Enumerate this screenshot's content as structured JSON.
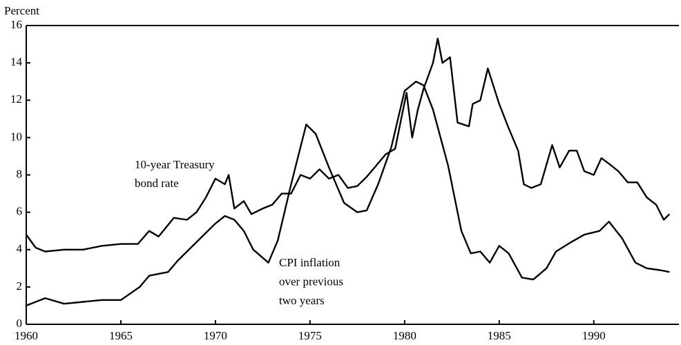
{
  "chart_data": {
    "type": "line",
    "y_label": "Percent",
    "xlim": [
      1960,
      1994.5
    ],
    "xticks": [
      1960,
      1965,
      1970,
      1975,
      1980,
      1985,
      1990
    ],
    "ylim": [
      0,
      16
    ],
    "yticks": [
      0,
      2,
      4,
      6,
      8,
      10,
      12,
      14,
      16
    ],
    "series": [
      {
        "color": "#000000",
        "x": [
          1960.0,
          1960.5,
          1961,
          1962,
          1963,
          1964,
          1965,
          1965.9,
          1966.5,
          1967,
          1967.8,
          1968.5,
          1969,
          1969.5,
          1970.0,
          1970.5,
          1970.7,
          1971,
          1971.5,
          1971.9,
          1972.5,
          1973,
          1973.5,
          1974,
          1974.5,
          1975,
          1975.5,
          1976,
          1976.5,
          1977,
          1977.5,
          1978,
          1978.5,
          1979,
          1979.5,
          1980.1,
          1980.4,
          1980.7,
          1981.0,
          1981.5,
          1981.75,
          1982,
          1982.4,
          1982.8,
          1983.4,
          1983.6,
          1984.0,
          1984.4,
          1985,
          1985.5,
          1986.0,
          1986.3,
          1986.7,
          1987.2,
          1987.6,
          1987.8,
          1988.2,
          1988.7,
          1989.1,
          1989.5,
          1990,
          1990.4,
          1990.8,
          1991.3,
          1991.8,
          1992.3,
          1992.8,
          1993.3,
          1993.7,
          1994.0
        ],
        "values": [
          4.8,
          4.1,
          3.9,
          4.0,
          4.0,
          4.2,
          4.3,
          4.3,
          5.0,
          4.7,
          5.7,
          5.6,
          6.0,
          6.8,
          7.8,
          7.5,
          8.0,
          6.2,
          6.6,
          5.9,
          6.2,
          6.4,
          7.0,
          7.0,
          8.0,
          7.8,
          8.3,
          7.8,
          8.0,
          7.3,
          7.4,
          7.9,
          8.5,
          9.1,
          9.4,
          12.4,
          10.0,
          11.5,
          12.6,
          14.0,
          15.3,
          14.0,
          14.3,
          10.8,
          10.6,
          11.8,
          12.0,
          13.7,
          11.8,
          10.5,
          9.3,
          7.5,
          7.3,
          7.5,
          8.9,
          9.6,
          8.4,
          9.3,
          9.3,
          8.2,
          8.0,
          8.9,
          8.6,
          8.2,
          7.6,
          7.6,
          6.8,
          6.4,
          5.6,
          5.9
        ]
      },
      {
        "color": "#000000",
        "x": [
          1960,
          1961,
          1962,
          1963,
          1964,
          1965,
          1966,
          1966.5,
          1967.5,
          1968,
          1969,
          1970,
          1970.5,
          1971,
          1971.5,
          1972,
          1972.8,
          1973.3,
          1974,
          1974.8,
          1975.3,
          1976,
          1976.8,
          1977.5,
          1978,
          1978.6,
          1979.3,
          1980.0,
          1980.6,
          1981.0,
          1981.5,
          1982.3,
          1983,
          1983.5,
          1984.0,
          1984.5,
          1985.0,
          1985.5,
          1986.2,
          1986.8,
          1987.5,
          1988.0,
          1988.8,
          1989.5,
          1990.3,
          1990.8,
          1991.5,
          1992.2,
          1992.8,
          1993.5,
          1994.0
        ],
        "values": [
          1.0,
          1.4,
          1.1,
          1.2,
          1.3,
          1.3,
          2.0,
          2.6,
          2.8,
          3.4,
          4.4,
          5.4,
          5.8,
          5.6,
          5.0,
          4.0,
          3.3,
          4.5,
          7.5,
          10.7,
          10.2,
          8.4,
          6.5,
          6.0,
          6.1,
          7.5,
          9.5,
          12.5,
          13.0,
          12.8,
          11.5,
          8.5,
          5.0,
          3.8,
          3.9,
          3.3,
          4.2,
          3.8,
          2.5,
          2.4,
          3.0,
          3.9,
          4.4,
          4.8,
          5.0,
          5.5,
          4.6,
          3.3,
          3.0,
          2.9,
          2.8
        ]
      }
    ],
    "annotations": [
      {
        "lines": [
          "10-year Treasury",
          "bond rate"
        ]
      },
      {
        "lines": [
          "CPI inflation",
          "over previous",
          "two years"
        ]
      }
    ]
  }
}
